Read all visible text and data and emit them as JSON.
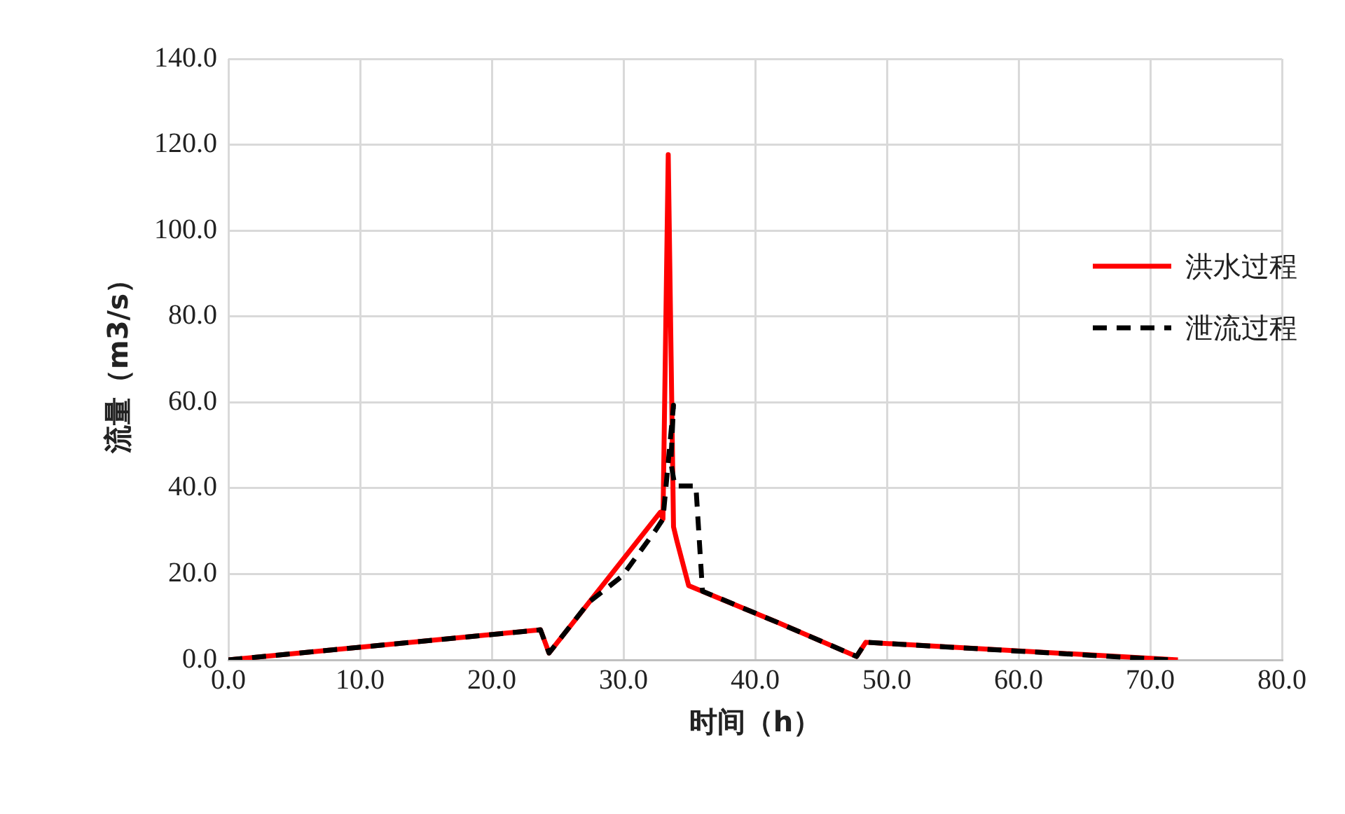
{
  "chart_data": {
    "type": "line",
    "xlabel": "时间（h）",
    "ylabel": "流量（m3/s）",
    "xlim": [
      0,
      80
    ],
    "xticks": [
      {
        "value": 0,
        "label": "0.0"
      },
      {
        "value": 10,
        "label": "10.0"
      },
      {
        "value": 20,
        "label": "20.0"
      },
      {
        "value": 30,
        "label": "30.0"
      },
      {
        "value": 40,
        "label": "40.0"
      },
      {
        "value": 50,
        "label": "50.0"
      },
      {
        "value": 60,
        "label": "60.0"
      },
      {
        "value": 70,
        "label": "70.0"
      },
      {
        "value": 80,
        "label": "80.0"
      }
    ],
    "ylim": [
      0,
      140
    ],
    "yticks": [
      {
        "value": 0,
        "label": "0.0"
      },
      {
        "value": 20,
        "label": "20.0"
      },
      {
        "value": 40,
        "label": "40.0"
      },
      {
        "value": 60,
        "label": "60.0"
      },
      {
        "value": 80,
        "label": "80.0"
      },
      {
        "value": 100,
        "label": "100.0"
      },
      {
        "value": 120,
        "label": "120.0"
      },
      {
        "value": 140,
        "label": "140.0"
      }
    ],
    "grid": true,
    "legend": "right",
    "marker": "none",
    "series": [
      {
        "name": "洪水过程",
        "color": "#ff0000",
        "line_style": "solid",
        "x": [
          0,
          23.7,
          24.35,
          32.8,
          33.0,
          33.4,
          33.8,
          34.05,
          34.95,
          41.8,
          47.7,
          48.4,
          72.1
        ],
        "values": [
          0,
          7,
          1.6,
          34.4,
          32.8,
          117.7,
          31,
          27.8,
          17.3,
          8.6,
          0.8,
          4.1,
          0
        ]
      },
      {
        "name": "泄流过程",
        "color": "#000000",
        "line_style": "dashed",
        "x": [
          0,
          23.7,
          24.35,
          27.4,
          29.9,
          32.4,
          33.0,
          33.8,
          33.6,
          33.9,
          35.5,
          36.0,
          41.8,
          47.7,
          48.4,
          71.5
        ],
        "values": [
          0,
          7,
          1.6,
          13.5,
          19.5,
          30,
          32.8,
          59.3,
          46,
          40.5,
          40.5,
          16,
          8.6,
          0.8,
          4.1,
          0
        ]
      }
    ]
  }
}
